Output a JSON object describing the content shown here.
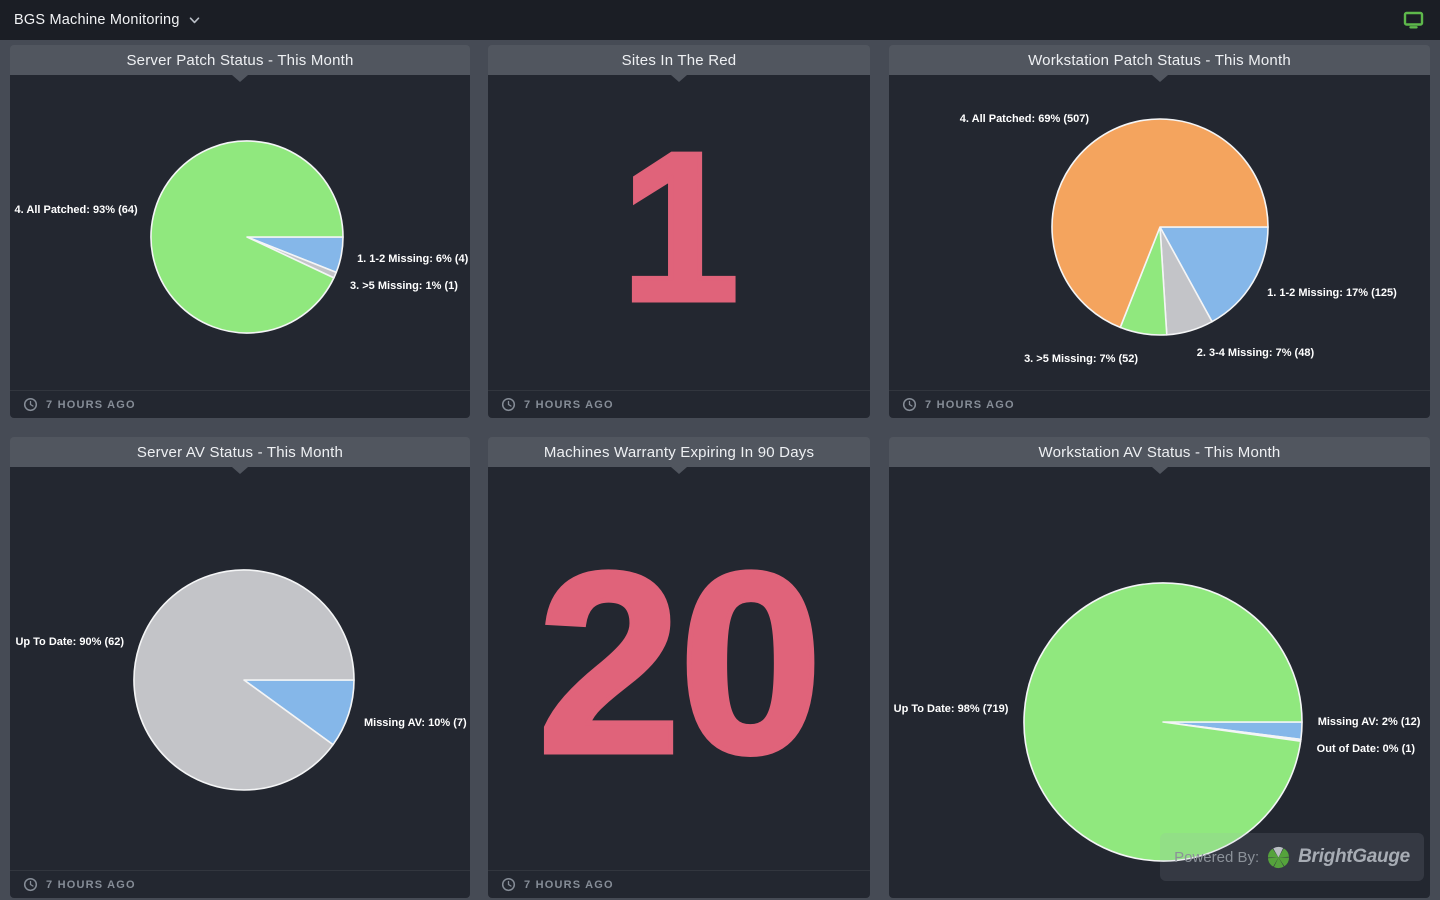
{
  "topbar": {
    "title": "BGS Machine Monitoring",
    "chevron_icon": "chevron-down-icon",
    "display_icon": "monitor-icon",
    "accent_green": "#5eb84b"
  },
  "branding": {
    "powered_by": "Powered By:",
    "brand": "BrightGauge",
    "logo_green": "#55a33c",
    "logo_gray": "#b9bec3"
  },
  "palette": {
    "blue": "#85b7e9",
    "gray": "#c3c4c8",
    "green": "#90e87e",
    "orange": "#f4a45e",
    "number_pink": "#e0637a"
  },
  "chart_data": [
    {
      "type": "pie",
      "title": "Server Patch Status - This Month",
      "updated": "7 HOURS AGO",
      "start_angle_deg": 0,
      "legend_position": "outside-labels",
      "slices": [
        {
          "name": "1. 1-2 Missing",
          "label": "1. 1-2 Missing: 6% (4)",
          "pct": 6,
          "count": 4,
          "color": "#85b7e9",
          "label_dy": 2
        },
        {
          "name": "3. >5 Missing",
          "label": "3. >5 Missing: 1% (1)",
          "pct": 1,
          "count": 1,
          "color": "#c3c4c8",
          "label_dy": 6
        },
        {
          "name": "4. All Patched",
          "label": "4. All Patched: 93% (64)",
          "pct": 93,
          "count": 64,
          "color": "#90e87e",
          "label_dy": -3
        }
      ]
    },
    {
      "type": "number",
      "title": "Sites In The Red",
      "updated": "7 HOURS AGO",
      "value": "1",
      "color": "#e0637a"
    },
    {
      "type": "pie",
      "title": "Workstation Patch Status - This Month",
      "updated": "7 HOURS AGO",
      "start_angle_deg": 0,
      "legend_position": "outside-labels",
      "slices": [
        {
          "name": "1. 1-2 Missing",
          "label": "1. 1-2 Missing: 17% (125)",
          "pct": 17,
          "count": 125,
          "color": "#85b7e9",
          "label_dy": 4
        },
        {
          "name": "2. 3-4 Missing",
          "label": "2. 3-4 Missing: 7% (48)",
          "pct": 7,
          "count": 48,
          "color": "#c3c4c8",
          "label_dy": 10
        },
        {
          "name": "3. >5 Missing",
          "label": "3. >5 Missing: 7% (52)",
          "pct": 7,
          "count": 52,
          "color": "#90e87e",
          "label_dy": 12
        },
        {
          "name": "4. All Patched",
          "label": "4. All Patched: 69% (507)",
          "pct": 69,
          "count": 507,
          "color": "#f4a45e",
          "label_dy": -8
        }
      ]
    },
    {
      "type": "pie",
      "title": "Server AV Status - This Month",
      "updated": "7 HOURS AGO",
      "start_angle_deg": 0,
      "legend_position": "outside-labels",
      "slices": [
        {
          "name": "Missing AV",
          "label": "Missing AV: 10% (7)",
          "pct": 10,
          "count": 7,
          "color": "#85b7e9",
          "label_dy": 5
        },
        {
          "name": "Up To Date",
          "label": "Up To Date: 90% (62)",
          "pct": 90,
          "count": 62,
          "color": "#c3c4c8",
          "label_dy": 0
        }
      ]
    },
    {
      "type": "number",
      "title": "Machines Warranty Expiring In 90 Days",
      "updated": "7 HOURS AGO",
      "value": "20",
      "color": "#e0637a"
    },
    {
      "type": "pie",
      "title": "Workstation AV Status - This Month",
      "start_angle_deg": 0,
      "legend_position": "outside-labels",
      "slices": [
        {
          "name": "Missing AV",
          "label": "Missing AV: 2% (12)",
          "pct": 2,
          "count": 12,
          "color": "#85b7e9",
          "label_dy": -10
        },
        {
          "name": "Out of Date",
          "label": "Out of Date: 0% (1)",
          "pct": 0.2,
          "count": 1,
          "color": "#c3c4c8",
          "label_dy": 7
        },
        {
          "name": "Up To Date",
          "label": "Up To Date: 98% (719)",
          "pct": 97.8,
          "count": 719,
          "color": "#90e87e",
          "label_dy": -3
        }
      ]
    }
  ]
}
